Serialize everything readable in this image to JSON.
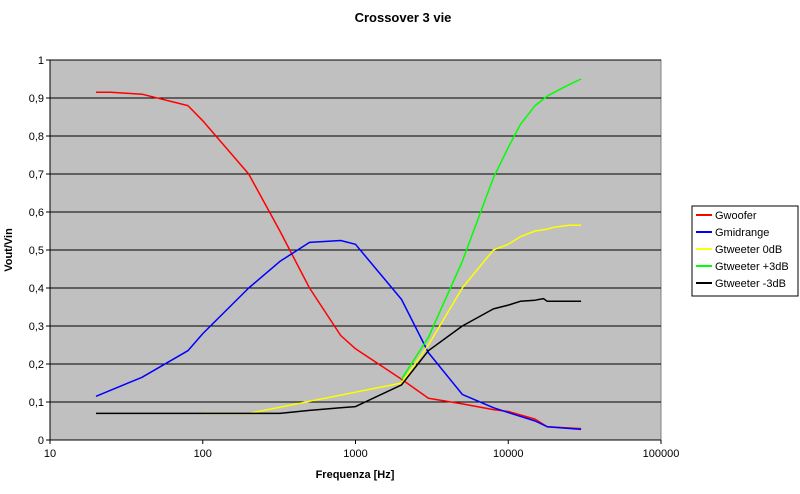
{
  "chart_data": {
    "type": "line",
    "title": "Crossover 3 vie",
    "xlabel": "Frequenza [Hz]",
    "ylabel": "Vout/Vin",
    "xscale": "log",
    "xlim": [
      10,
      100000
    ],
    "ylim": [
      0,
      1
    ],
    "x_ticks": [
      10,
      100,
      1000,
      10000,
      100000
    ],
    "x_tick_labels": [
      "10",
      "100",
      "1000",
      "10000",
      "100000"
    ],
    "y_ticks": [
      0,
      0.1,
      0.2,
      0.3,
      0.4,
      0.5,
      0.6,
      0.7,
      0.8,
      0.9,
      1
    ],
    "y_tick_labels": [
      "0",
      "0,1",
      "0,2",
      "0,3",
      "0,4",
      "0,5",
      "0,6",
      "0,7",
      "0,8",
      "0,9",
      "1"
    ],
    "grid": "horizontal",
    "plot_background": "#c0c0c0",
    "legend_position": "right",
    "series": [
      {
        "name": "Gwoofer",
        "color": "#ff0000",
        "x": [
          20,
          25,
          40,
          80,
          100,
          200,
          320,
          500,
          800,
          1000,
          2000,
          3000,
          5000,
          8000,
          10000,
          15000,
          18000,
          30000
        ],
        "y": [
          0.915,
          0.915,
          0.91,
          0.88,
          0.84,
          0.7,
          0.55,
          0.4,
          0.275,
          0.24,
          0.16,
          0.11,
          0.095,
          0.08,
          0.075,
          0.055,
          0.035,
          0.03
        ]
      },
      {
        "name": "Gmidrange",
        "color": "#0000ff",
        "x": [
          20,
          40,
          80,
          100,
          200,
          320,
          500,
          800,
          1000,
          2000,
          3000,
          5000,
          8000,
          10000,
          15000,
          18000,
          30000
        ],
        "y": [
          0.115,
          0.165,
          0.235,
          0.28,
          0.4,
          0.47,
          0.52,
          0.525,
          0.515,
          0.37,
          0.23,
          0.12,
          0.085,
          0.072,
          0.05,
          0.035,
          0.028
        ]
      },
      {
        "name": "Gtweeter 0dB",
        "color": "#ffff00",
        "x": [
          100,
          200,
          2000,
          3000,
          5000,
          8000,
          10000,
          12000,
          15000,
          18000,
          20000,
          25000,
          30000
        ],
        "y": [
          0.07,
          0.07,
          0.15,
          0.25,
          0.4,
          0.5,
          0.515,
          0.535,
          0.55,
          0.555,
          0.56,
          0.565,
          0.565
        ]
      },
      {
        "name": "Gtweeter +3dB",
        "color": "#00ff00",
        "x": [
          2000,
          3000,
          5000,
          8000,
          10000,
          12000,
          15000,
          18000,
          20000,
          25000,
          30000
        ],
        "y": [
          0.16,
          0.27,
          0.47,
          0.69,
          0.77,
          0.83,
          0.88,
          0.905,
          0.915,
          0.935,
          0.95
        ]
      },
      {
        "name": "Gtweeter -3dB",
        "color": "#000000",
        "x": [
          20,
          100,
          200,
          320,
          500,
          800,
          1000,
          2000,
          3000,
          5000,
          8000,
          10000,
          12000,
          15000,
          17000,
          18000,
          20000,
          30000
        ],
        "y": [
          0.07,
          0.07,
          0.07,
          0.07,
          0.078,
          0.085,
          0.088,
          0.145,
          0.235,
          0.3,
          0.345,
          0.355,
          0.365,
          0.368,
          0.372,
          0.365,
          0.365,
          0.365
        ]
      }
    ]
  }
}
